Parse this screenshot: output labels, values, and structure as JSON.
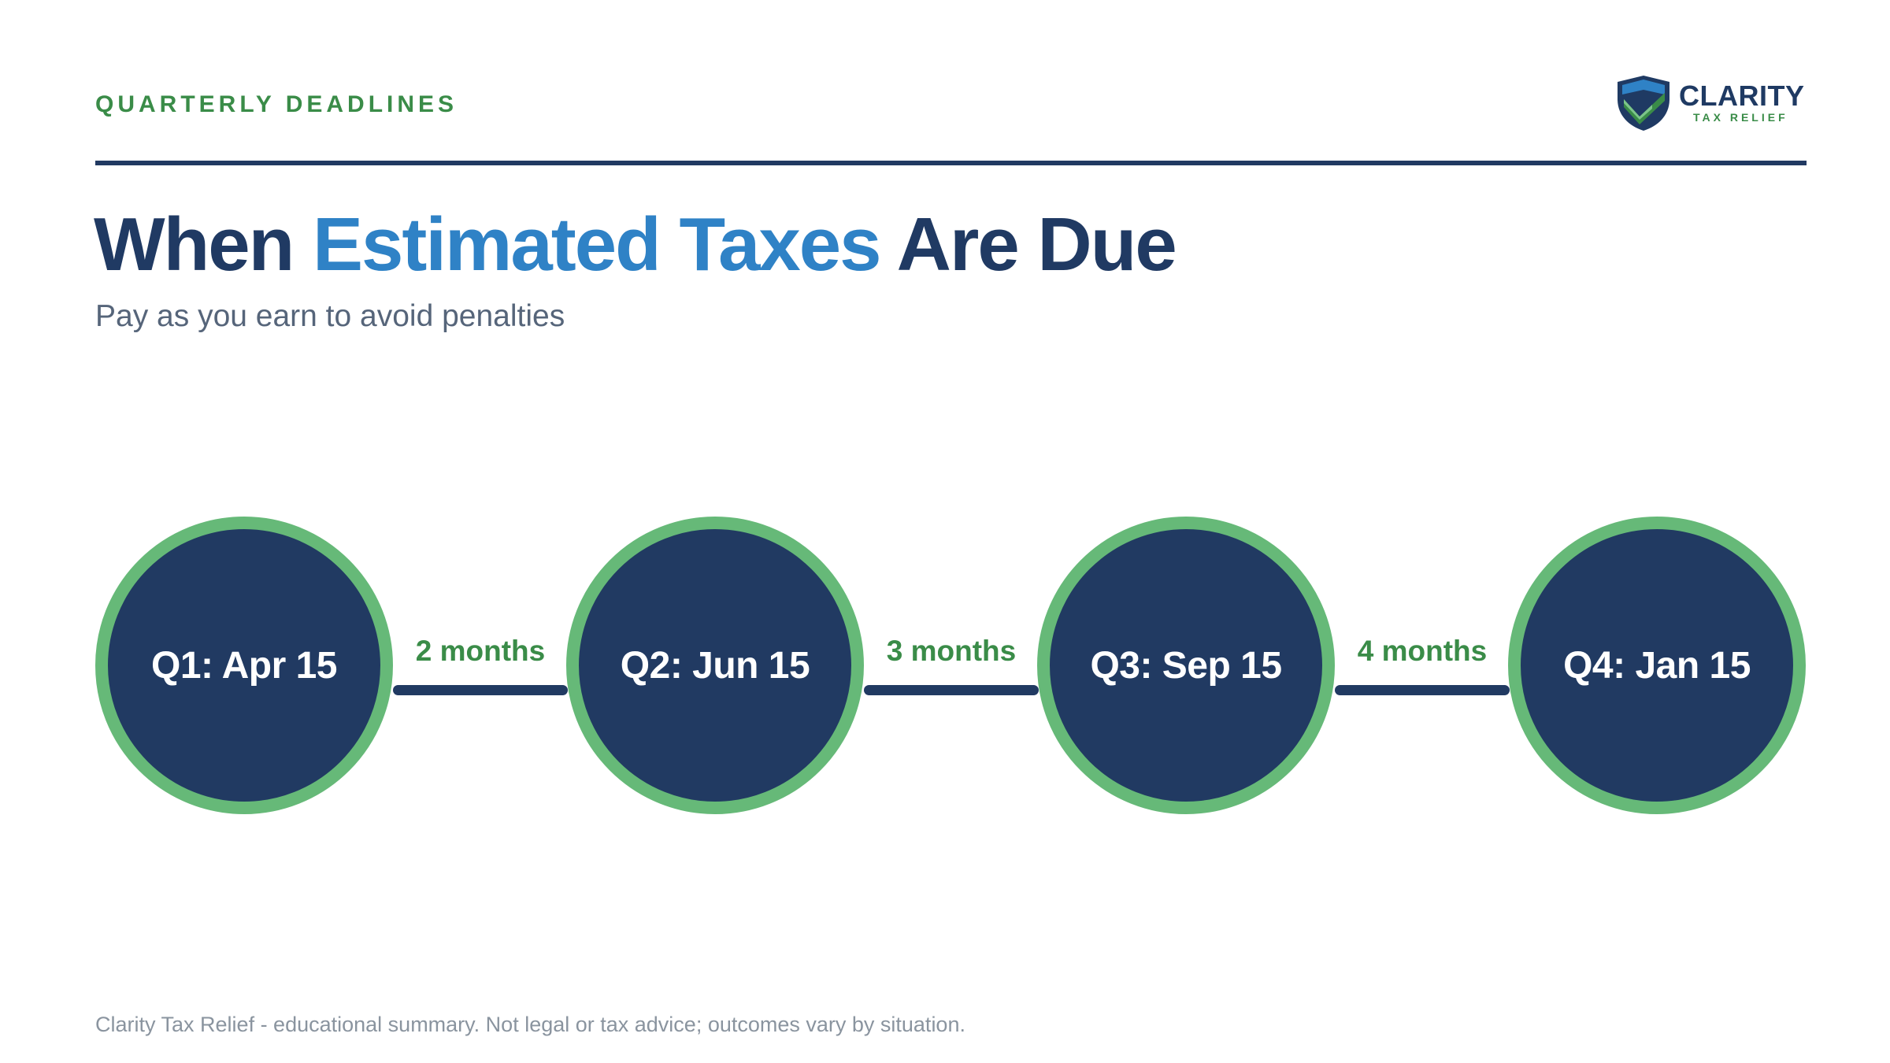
{
  "header": {
    "eyebrow": "QUARTERLY DEADLINES",
    "logo": {
      "name": "CLARITY",
      "tagline": "TAX RELIEF"
    }
  },
  "title": {
    "part1": "When ",
    "accent": "Estimated Taxes",
    "part2": " Are Due"
  },
  "subtitle": "Pay as you earn to avoid penalties",
  "timeline": {
    "deadlines": [
      "Q1: Apr 15",
      "Q2: Jun 15",
      "Q3: Sep 15",
      "Q4: Jan 15"
    ],
    "gaps": [
      "2 months",
      "3 months",
      "4 months"
    ]
  },
  "footer": "Clarity Tax Relief - educational summary. Not legal or tax advice; outcomes vary by situation.",
  "colors": {
    "navy": "#213a62",
    "accent_blue": "#2f82c6",
    "green": "#3a8c48",
    "ring_green": "#66b978"
  }
}
